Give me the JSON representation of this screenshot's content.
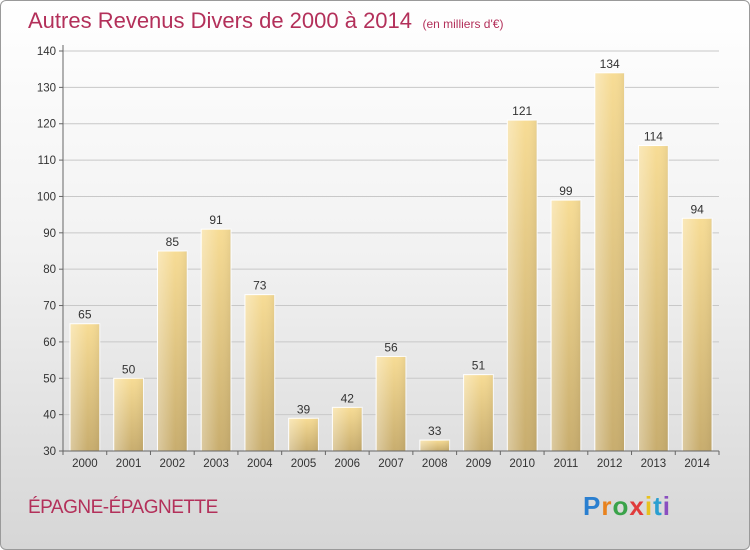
{
  "chart_data": {
    "type": "bar",
    "title": "Autres Revenus Divers de 2000 à 2014",
    "subtitle": "(en milliers d'€)",
    "categories": [
      "2000",
      "2001",
      "2002",
      "2003",
      "2004",
      "2005",
      "2006",
      "2007",
      "2008",
      "2009",
      "2010",
      "2011",
      "2012",
      "2013",
      "2014"
    ],
    "values": [
      65,
      50,
      85,
      91,
      73,
      39,
      42,
      56,
      33,
      51,
      121,
      99,
      134,
      114,
      94
    ],
    "ylim": [
      30,
      140
    ],
    "yticks": [
      30,
      40,
      50,
      60,
      70,
      80,
      90,
      100,
      110,
      120,
      130,
      140
    ],
    "grid": true,
    "bar_color": "#e8cc84",
    "title_color": "#b3305a"
  },
  "footer": {
    "commune": "ÉPAGNE-ÉPAGNETTE",
    "logo": "Proxiti",
    "logo_letters": [
      "P",
      "r",
      "o",
      "x",
      "i",
      "t",
      "i"
    ],
    "logo_colors": [
      "#2a7fd0",
      "#e8821e",
      "#3aa34a",
      "#e03b3b",
      "#e8c21e",
      "#2a9fd0",
      "#8a4fc0"
    ]
  }
}
